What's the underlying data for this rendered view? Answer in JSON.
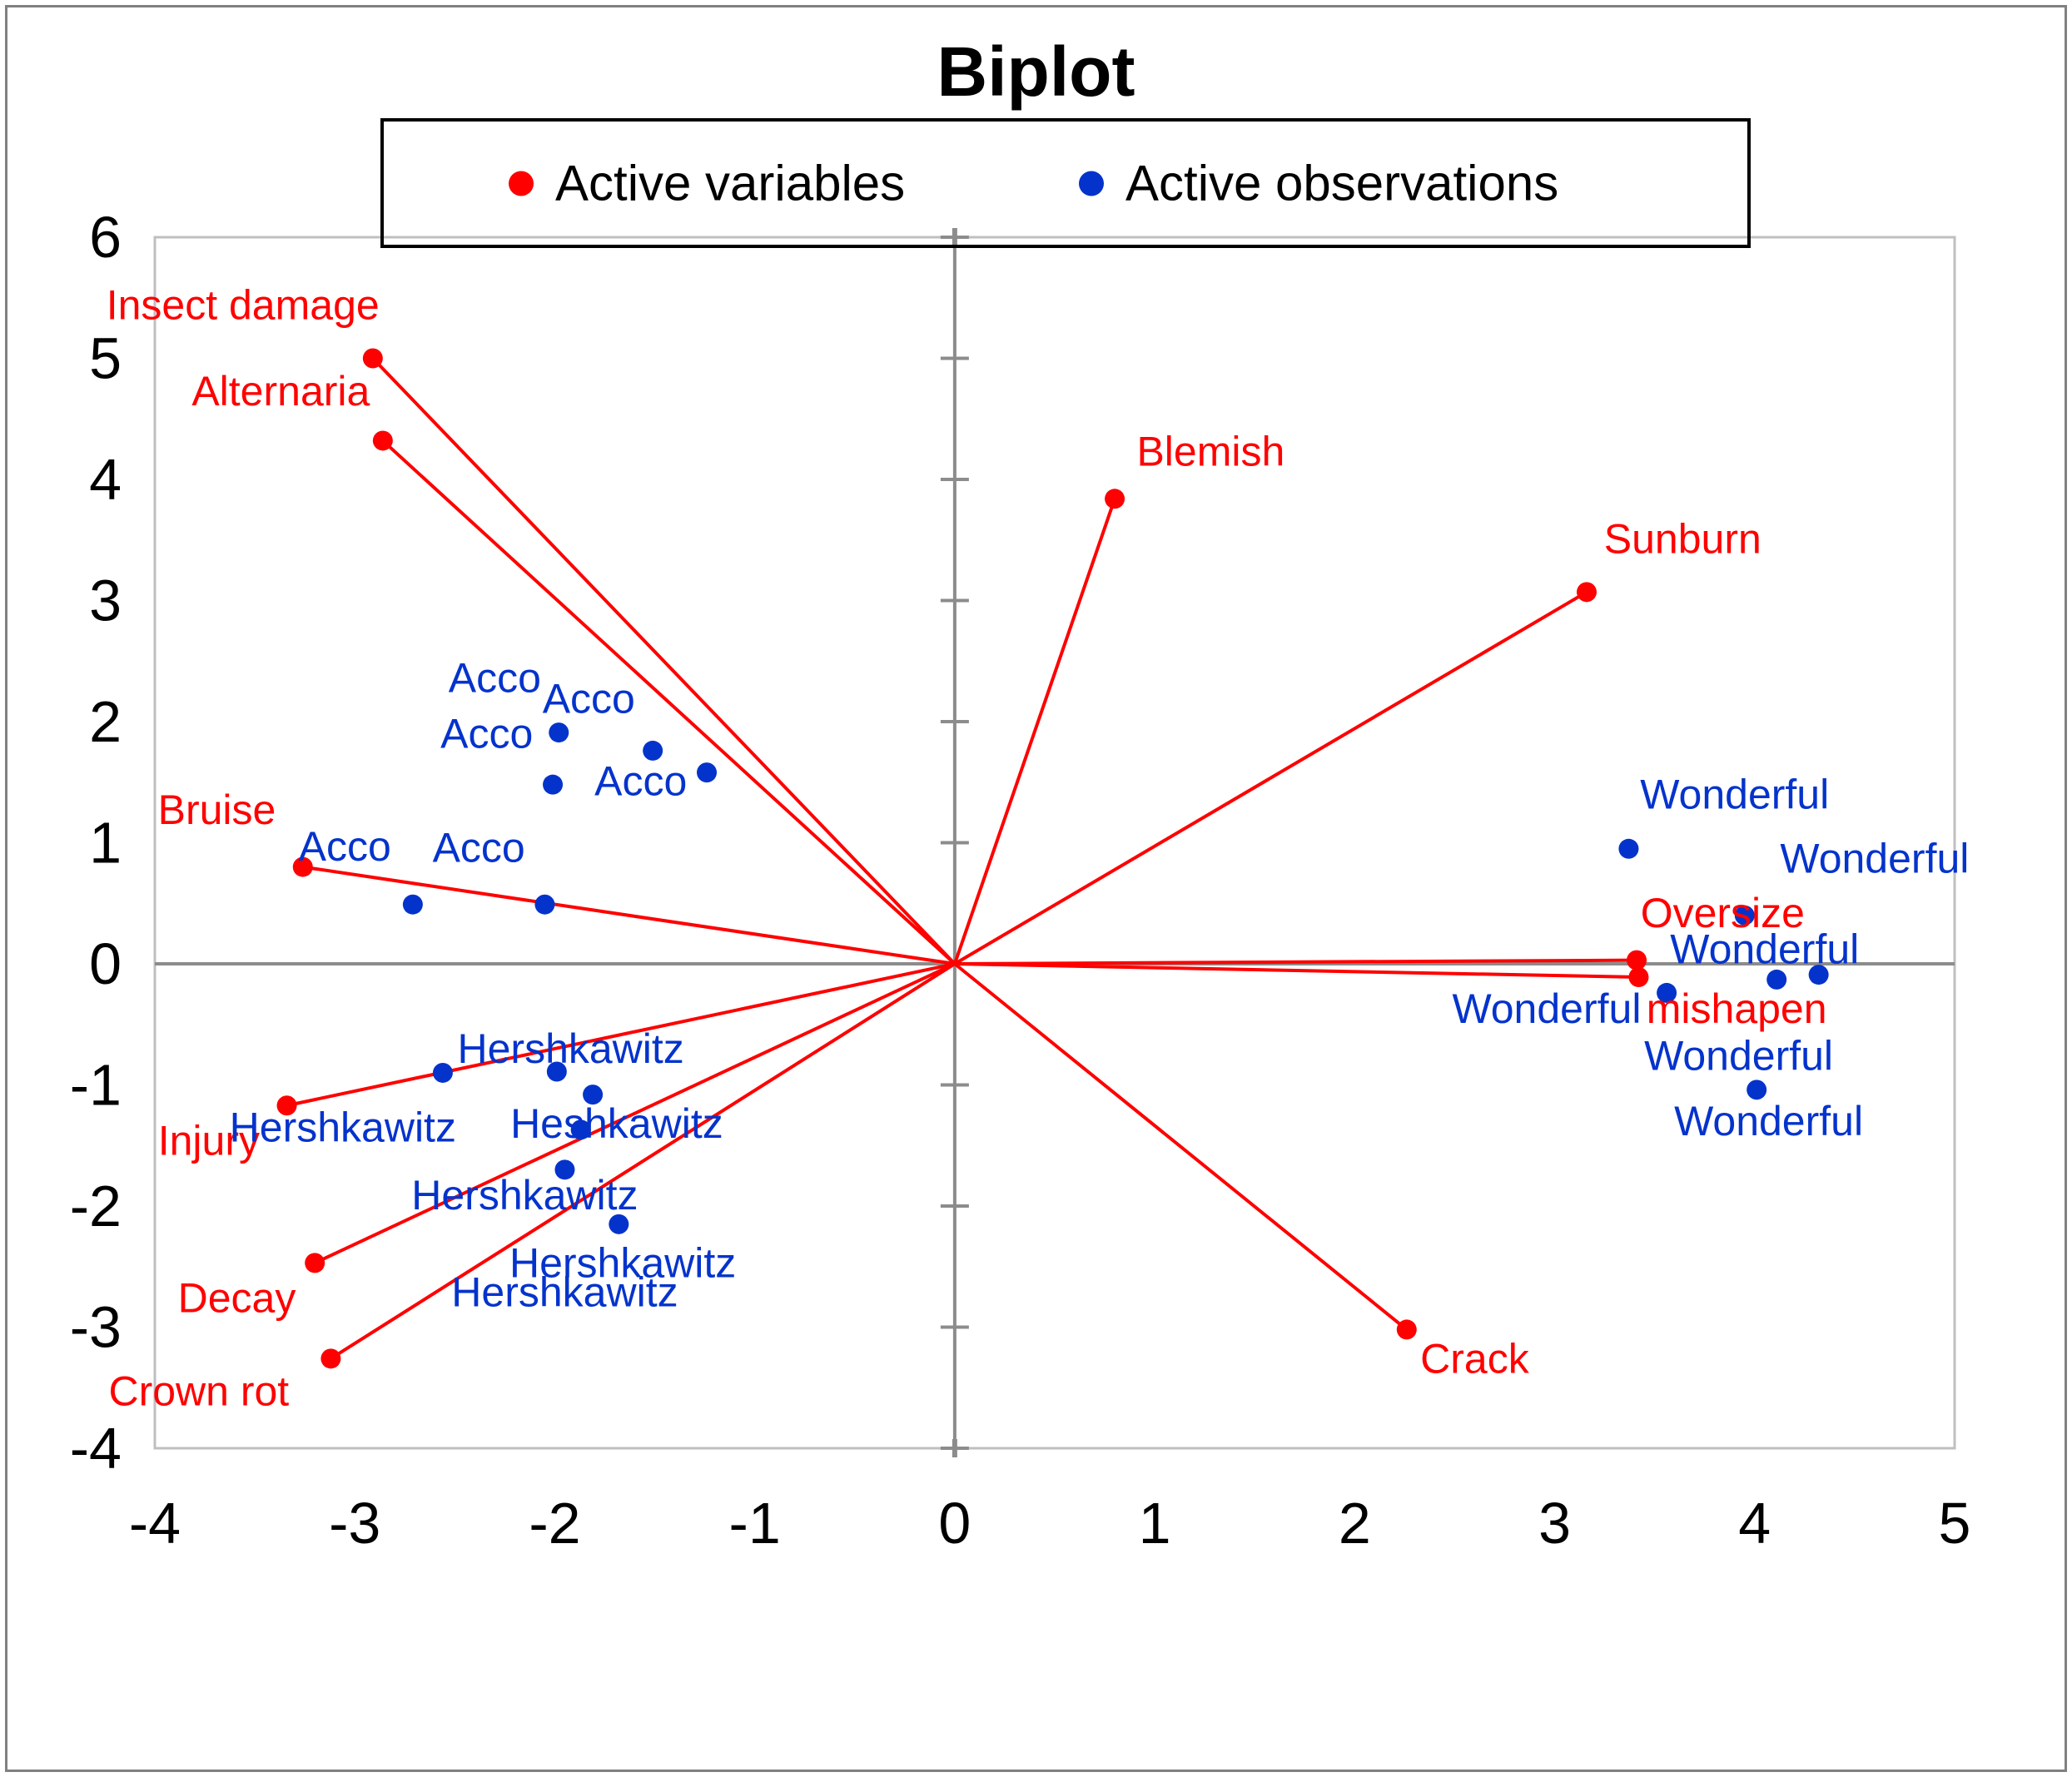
{
  "title": "Biplot",
  "legend": {
    "items": [
      {
        "label": "Active variables",
        "color": "#FF0000"
      },
      {
        "label": "Active observations",
        "color": "#0433CC"
      }
    ]
  },
  "colors": {
    "variable": "#FF0000",
    "observation": "#0433CC",
    "axis_line": "#8C8C8C",
    "plot_border": "#BFBFBF",
    "page_border": "#808080",
    "tick_label": "#000000"
  },
  "chart_data": {
    "type": "scatter",
    "title": "Biplot",
    "xlabel": "",
    "ylabel": "",
    "xlim": [
      -4,
      5
    ],
    "ylim": [
      -4,
      6
    ],
    "x_ticks": [
      -4,
      -3,
      -2,
      -1,
      0,
      1,
      2,
      3,
      4,
      5
    ],
    "y_ticks": [
      -4,
      -3,
      -2,
      -1,
      0,
      1,
      2,
      3,
      4,
      5,
      6
    ],
    "grid": false,
    "legend_position": "top",
    "series": [
      {
        "name": "Active variables",
        "style": "vectors-from-origin",
        "color": "#FF0000",
        "points": [
          {
            "label": "Insect damage",
            "x": -2.91,
            "y": 5.0,
            "label_x": -3.56,
            "label_y": 5.44
          },
          {
            "label": "Alternaria",
            "x": -2.86,
            "y": 4.32,
            "label_x": -3.37,
            "label_y": 4.73
          },
          {
            "label": "Blemish",
            "x": 0.8,
            "y": 3.84,
            "label_x": 1.28,
            "label_y": 4.23
          },
          {
            "label": "Sunburn",
            "x": 3.16,
            "y": 3.07,
            "label_x": 3.64,
            "label_y": 3.51
          },
          {
            "label": "Bruise",
            "x": -3.26,
            "y": 0.8,
            "label_x": -3.69,
            "label_y": 1.27
          },
          {
            "label": "Oversize",
            "x": 3.41,
            "y": 0.03,
            "label_x": 3.84,
            "label_y": 0.42
          },
          {
            "label": "mishapen",
            "x": 3.42,
            "y": -0.11,
            "label_x": 3.91,
            "label_y": -0.37
          },
          {
            "label": "Injury",
            "x": -3.34,
            "y": -1.17,
            "label_x": -3.73,
            "label_y": -1.46
          },
          {
            "label": "Decay",
            "x": -3.2,
            "y": -2.47,
            "label_x": -3.59,
            "label_y": -2.76
          },
          {
            "label": "Crown rot",
            "x": -3.12,
            "y": -3.26,
            "label_x": -3.78,
            "label_y": -3.53
          },
          {
            "label": "Crack",
            "x": 2.26,
            "y": -3.02,
            "label_x": 2.6,
            "label_y": -3.26
          }
        ]
      },
      {
        "name": "Active observations",
        "style": "points",
        "color": "#0433CC",
        "points": [
          {
            "label": "Acco",
            "x": -1.98,
            "y": 1.91,
            "label_x": -2.3,
            "label_y": 2.36
          },
          {
            "label": "Acco",
            "x": -1.51,
            "y": 1.76,
            "label_x": -1.83,
            "label_y": 2.19
          },
          {
            "label": "Acco",
            "x": -1.24,
            "y": 1.58,
            "label_x": -1.57,
            "label_y": 1.51
          },
          {
            "label": "Acco",
            "x": -2.01,
            "y": 1.48,
            "label_x": -2.34,
            "label_y": 1.9
          },
          {
            "label": "Acco",
            "x": -2.71,
            "y": 0.49,
            "label_x": -3.05,
            "label_y": 0.97
          },
          {
            "label": "Acco",
            "x": -2.05,
            "y": 0.49,
            "label_x": -2.38,
            "label_y": 0.96
          },
          {
            "label": "Hershkawitz",
            "x": -2.56,
            "y": -0.9,
            "label_x": -3.06,
            "label_y": -1.35
          },
          {
            "label": "Hershkawitz",
            "x": -1.99,
            "y": -0.89,
            "label_x": -1.92,
            "label_y": -0.7
          },
          {
            "label": "Heshkawitz",
            "x": -1.81,
            "y": -1.08,
            "label_x": -1.69,
            "label_y": -1.32
          },
          {
            "label": "Hershkawitz",
            "x": -1.87,
            "y": -1.37,
            "label_x": -2.15,
            "label_y": -1.91
          },
          {
            "label": "Hershkawitz",
            "x": -1.95,
            "y": -1.7,
            "label_x": -1.66,
            "label_y": -2.47
          },
          {
            "label": "Hershkawitz",
            "x": -1.68,
            "y": -2.15,
            "label_x": -1.95,
            "label_y": -2.71
          },
          {
            "label": "Wonderful",
            "x": 3.37,
            "y": 0.95,
            "label_x": 3.9,
            "label_y": 1.4
          },
          {
            "label": "Wonderful",
            "x": 3.95,
            "y": 0.4,
            "label_x": 4.6,
            "label_y": 0.87
          },
          {
            "label": "Wonderful",
            "x": 4.11,
            "y": -0.13,
            "label_x": 4.05,
            "label_y": 0.12
          },
          {
            "label": "Wonderful",
            "x": 4.32,
            "y": -0.09,
            "label_x": 2.96,
            "label_y": -0.37
          },
          {
            "label": "Wonderful",
            "x": 3.56,
            "y": -0.24,
            "label_x": 3.92,
            "label_y": -0.76
          },
          {
            "label": "Wonderful",
            "x": 4.01,
            "y": -1.04,
            "label_x": 4.07,
            "label_y": -1.3
          }
        ]
      }
    ]
  }
}
